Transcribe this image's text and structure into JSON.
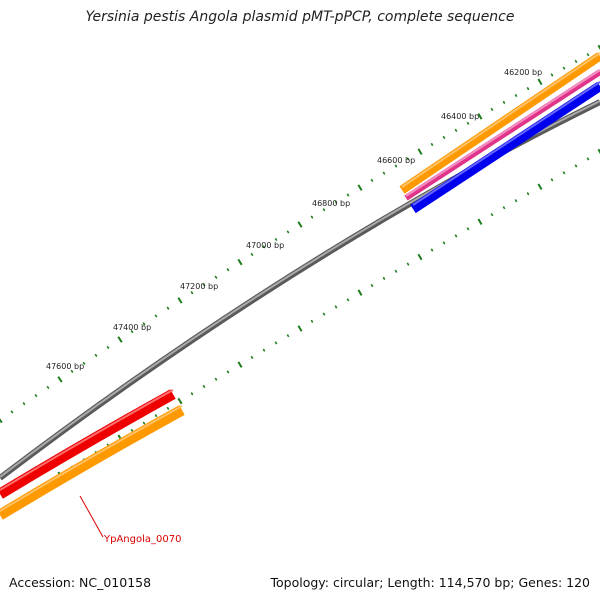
{
  "title": "Yersinia pestis Angola plasmid pMT-pPCP, complete sequence",
  "footer": {
    "accession": "Accession: NC_010158",
    "summary": "Topology: circular; Length: 114,570 bp; Genes: 120"
  },
  "ticks": [
    "46200 bp",
    "46400 bp",
    "46600 bp",
    "46800 bp",
    "47000 bp",
    "47200 bp",
    "47400 bp",
    "47600 bp"
  ],
  "feature_label": "YpAngola_0070",
  "colors": {
    "backbone": "#7a7a7a",
    "tick": "#1e7d1e",
    "orange": "#ff9900",
    "pink": "#e0338a",
    "blue": "#0000ee",
    "red": "#ee0000",
    "label": "#dd0000"
  }
}
